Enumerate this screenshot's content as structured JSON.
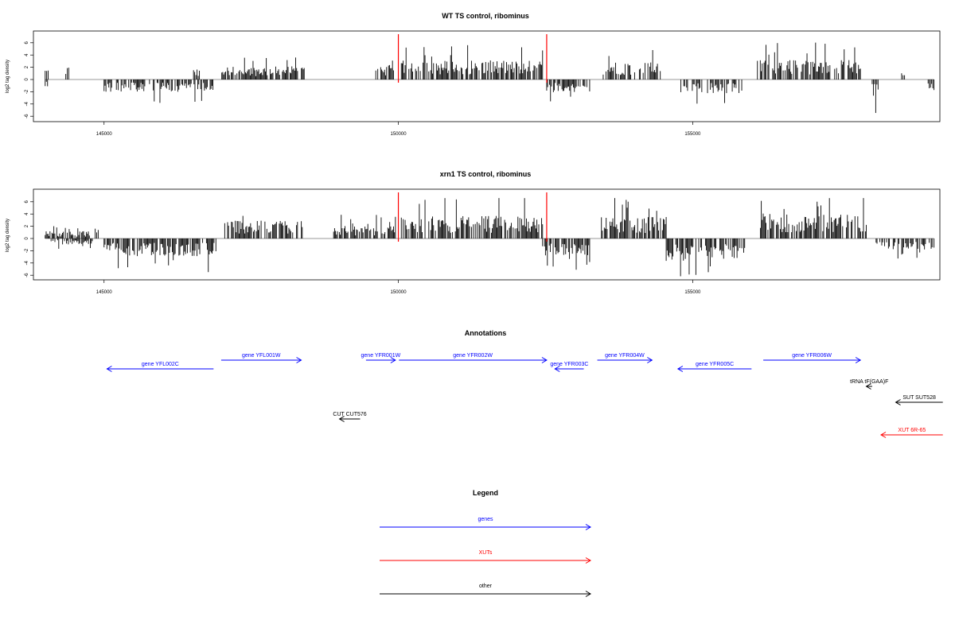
{
  "colors": {
    "gene": "#0000ff",
    "xut": "#ff0000",
    "other": "#000000",
    "signal": "#000000",
    "marker": "#ff0000",
    "baseline": "#777777"
  },
  "chart_data": [
    {
      "type": "bar",
      "title": "WT TS control, ribominus",
      "ylabel": "log2 tag density",
      "xlim": [
        143800,
        159200
      ],
      "ylim": [
        -6,
        7
      ],
      "xticks": [
        "145000",
        "150000",
        "155000"
      ],
      "yticks": [
        "6",
        "4",
        "2",
        "0",
        "-2",
        "-4",
        "-6"
      ],
      "markers_x": [
        150000,
        152520
      ],
      "positive_bins": [
        {
          "from": 144000,
          "to": 144050,
          "level": 1.6
        },
        {
          "from": 144350,
          "to": 144400,
          "level": 2.0
        },
        {
          "from": 146520,
          "to": 146620,
          "level": 1.5
        },
        {
          "from": 147000,
          "to": 148400,
          "level": 1.8
        },
        {
          "from": 149550,
          "to": 149950,
          "level": 2.0
        },
        {
          "from": 150050,
          "to": 152450,
          "level": 2.6
        },
        {
          "from": 153480,
          "to": 154450,
          "level": 2.4
        },
        {
          "from": 156100,
          "to": 157850,
          "level": 2.7
        },
        {
          "from": 158550,
          "to": 158600,
          "level": 1.0
        }
      ],
      "negative_bins": [
        {
          "from": 144000,
          "to": 144040,
          "level": 1.0
        },
        {
          "from": 145000,
          "to": 146850,
          "level": 1.7
        },
        {
          "from": 152520,
          "to": 153250,
          "level": 1.8
        },
        {
          "from": 154800,
          "to": 155850,
          "level": 1.9
        },
        {
          "from": 158050,
          "to": 158150,
          "level": 2.5
        },
        {
          "from": 159000,
          "to": 159100,
          "level": 1.5
        }
      ]
    },
    {
      "type": "bar",
      "title": "xrn1 TS control, ribominus",
      "ylabel": "log2 tag density",
      "xlim": [
        143800,
        159200
      ],
      "ylim": [
        -6,
        7
      ],
      "xticks": [
        "145000",
        "150000",
        "155000"
      ],
      "yticks": [
        "6",
        "4",
        "2",
        "0",
        "-2",
        "-4",
        "-6"
      ],
      "markers_x": [
        150000,
        152520
      ],
      "positive_bins": [
        {
          "from": 144000,
          "to": 144750,
          "level": 1.0
        },
        {
          "from": 144850,
          "to": 144900,
          "level": 1.8
        },
        {
          "from": 147050,
          "to": 148400,
          "level": 2.6
        },
        {
          "from": 148900,
          "to": 149950,
          "level": 1.7
        },
        {
          "from": 150050,
          "to": 152450,
          "level": 3.1
        },
        {
          "from": 153450,
          "to": 154550,
          "level": 3.0
        },
        {
          "from": 156150,
          "to": 157950,
          "level": 3.4
        }
      ],
      "negative_bins": [
        {
          "from": 144100,
          "to": 144800,
          "level": 0.8
        },
        {
          "from": 145000,
          "to": 146900,
          "level": 2.4
        },
        {
          "from": 152450,
          "to": 153250,
          "level": 2.3
        },
        {
          "from": 154550,
          "to": 155900,
          "level": 3.1
        },
        {
          "from": 158100,
          "to": 159100,
          "level": 1.6
        }
      ]
    }
  ],
  "annotations": {
    "title": "Annotations",
    "items": [
      {
        "label": "gene YFL002C",
        "kind": "gene",
        "strand": "-",
        "start": 145050,
        "end": 146860,
        "row": 1
      },
      {
        "label": "gene YFL001W",
        "kind": "gene",
        "strand": "+",
        "start": 146990,
        "end": 148350,
        "row": 0
      },
      {
        "label": "gene YFR001W",
        "kind": "gene",
        "strand": "+",
        "start": 149450,
        "end": 149950,
        "row": 0
      },
      {
        "label": "gene YFR002W",
        "kind": "gene",
        "strand": "+",
        "start": 150010,
        "end": 152520,
        "row": 0
      },
      {
        "label": "gene YFR003C",
        "kind": "gene",
        "strand": "-",
        "start": 152660,
        "end": 153150,
        "row": 1
      },
      {
        "label": "gene YFR004W",
        "kind": "gene",
        "strand": "+",
        "start": 153380,
        "end": 154310,
        "row": 0
      },
      {
        "label": "gene YFR005C",
        "kind": "gene",
        "strand": "-",
        "start": 154750,
        "end": 156000,
        "row": 1
      },
      {
        "label": "gene YFR006W",
        "kind": "gene",
        "strand": "+",
        "start": 156200,
        "end": 157850,
        "row": 0
      },
      {
        "label": "tRNA tF(GAA)F",
        "kind": "other",
        "strand": "-",
        "start": 157950,
        "end": 158050,
        "row": 2
      },
      {
        "label": "SUT SUT528",
        "kind": "other",
        "strand": "-",
        "start": 158450,
        "end": 159250,
        "row": 3
      },
      {
        "label": "CUT CUT576",
        "kind": "other",
        "strand": "-",
        "start": 149000,
        "end": 149350,
        "row": 4
      },
      {
        "label": "XUT 6R-65",
        "kind": "xut",
        "strand": "-",
        "start": 158200,
        "end": 159250,
        "row": 5
      }
    ]
  },
  "legend": {
    "title": "Legend",
    "items": [
      {
        "label": "genes",
        "kind": "gene"
      },
      {
        "label": "XUTs",
        "kind": "xut"
      },
      {
        "label": "other",
        "kind": "other"
      }
    ]
  }
}
